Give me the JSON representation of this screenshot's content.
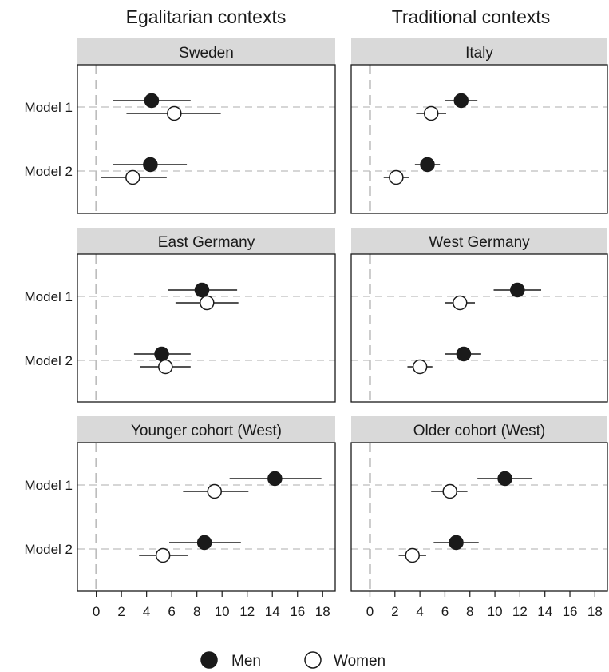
{
  "chart_data": {
    "type": "scatter",
    "subtype": "dot-and-whisker (point estimates with confidence intervals), faceted",
    "column_titles": [
      "Egalitarian contexts",
      "Traditional contexts"
    ],
    "rows": [
      "Model 1",
      "Model 2"
    ],
    "x_ticks": [
      "0",
      "2",
      "4",
      "6",
      "8",
      "10",
      "12",
      "14",
      "16",
      "18"
    ],
    "xlim": [
      -1.5,
      19
    ],
    "grid": "dashed horizontal lines at each model row; dashed vertical line at 0",
    "legend": {
      "placement": "bottom",
      "items": [
        {
          "label": "Men",
          "marker": "filled circle"
        },
        {
          "label": "Women",
          "marker": "hollow circle"
        }
      ]
    },
    "panels": [
      {
        "title": "Sweden",
        "estimates": [
          {
            "model": "Model 1",
            "group": "Men",
            "value": 4.4,
            "lower": 1.3,
            "upper": 7.5
          },
          {
            "model": "Model 1",
            "group": "Women",
            "value": 6.2,
            "lower": 2.4,
            "upper": 9.9
          },
          {
            "model": "Model 2",
            "group": "Men",
            "value": 4.3,
            "lower": 1.3,
            "upper": 7.2
          },
          {
            "model": "Model 2",
            "group": "Women",
            "value": 2.9,
            "lower": 0.4,
            "upper": 5.6
          }
        ]
      },
      {
        "title": "Italy",
        "estimates": [
          {
            "model": "Model 1",
            "group": "Men",
            "value": 7.3,
            "lower": 6.0,
            "upper": 8.6
          },
          {
            "model": "Model 1",
            "group": "Women",
            "value": 4.9,
            "lower": 3.7,
            "upper": 6.1
          },
          {
            "model": "Model 2",
            "group": "Men",
            "value": 4.6,
            "lower": 3.6,
            "upper": 5.6
          },
          {
            "model": "Model 2",
            "group": "Women",
            "value": 2.1,
            "lower": 1.1,
            "upper": 3.1
          }
        ]
      },
      {
        "title": "East Germany",
        "estimates": [
          {
            "model": "Model 1",
            "group": "Men",
            "value": 8.4,
            "lower": 5.7,
            "upper": 11.2
          },
          {
            "model": "Model 1",
            "group": "Women",
            "value": 8.8,
            "lower": 6.3,
            "upper": 11.3
          },
          {
            "model": "Model 2",
            "group": "Men",
            "value": 5.2,
            "lower": 3.0,
            "upper": 7.5
          },
          {
            "model": "Model 2",
            "group": "Women",
            "value": 5.5,
            "lower": 3.5,
            "upper": 7.5
          }
        ]
      },
      {
        "title": "West Germany",
        "estimates": [
          {
            "model": "Model 1",
            "group": "Men",
            "value": 11.8,
            "lower": 9.9,
            "upper": 13.7
          },
          {
            "model": "Model 1",
            "group": "Women",
            "value": 7.2,
            "lower": 6.0,
            "upper": 8.4
          },
          {
            "model": "Model 2",
            "group": "Men",
            "value": 7.5,
            "lower": 6.0,
            "upper": 8.9
          },
          {
            "model": "Model 2",
            "group": "Women",
            "value": 4.0,
            "lower": 3.0,
            "upper": 5.0
          }
        ]
      },
      {
        "title": "Younger cohort (West)",
        "estimates": [
          {
            "model": "Model 1",
            "group": "Men",
            "value": 14.2,
            "lower": 10.6,
            "upper": 17.9
          },
          {
            "model": "Model 1",
            "group": "Women",
            "value": 9.4,
            "lower": 6.9,
            "upper": 12.1
          },
          {
            "model": "Model 2",
            "group": "Men",
            "value": 8.6,
            "lower": 5.8,
            "upper": 11.5
          },
          {
            "model": "Model 2",
            "group": "Women",
            "value": 5.3,
            "lower": 3.4,
            "upper": 7.3
          }
        ]
      },
      {
        "title": "Older cohort (West)",
        "estimates": [
          {
            "model": "Model 1",
            "group": "Men",
            "value": 10.8,
            "lower": 8.6,
            "upper": 13.0
          },
          {
            "model": "Model 1",
            "group": "Women",
            "value": 6.4,
            "lower": 4.9,
            "upper": 7.8
          },
          {
            "model": "Model 2",
            "group": "Men",
            "value": 6.9,
            "lower": 5.1,
            "upper": 8.7
          },
          {
            "model": "Model 2",
            "group": "Women",
            "value": 3.4,
            "lower": 2.3,
            "upper": 4.5
          }
        ]
      }
    ]
  }
}
